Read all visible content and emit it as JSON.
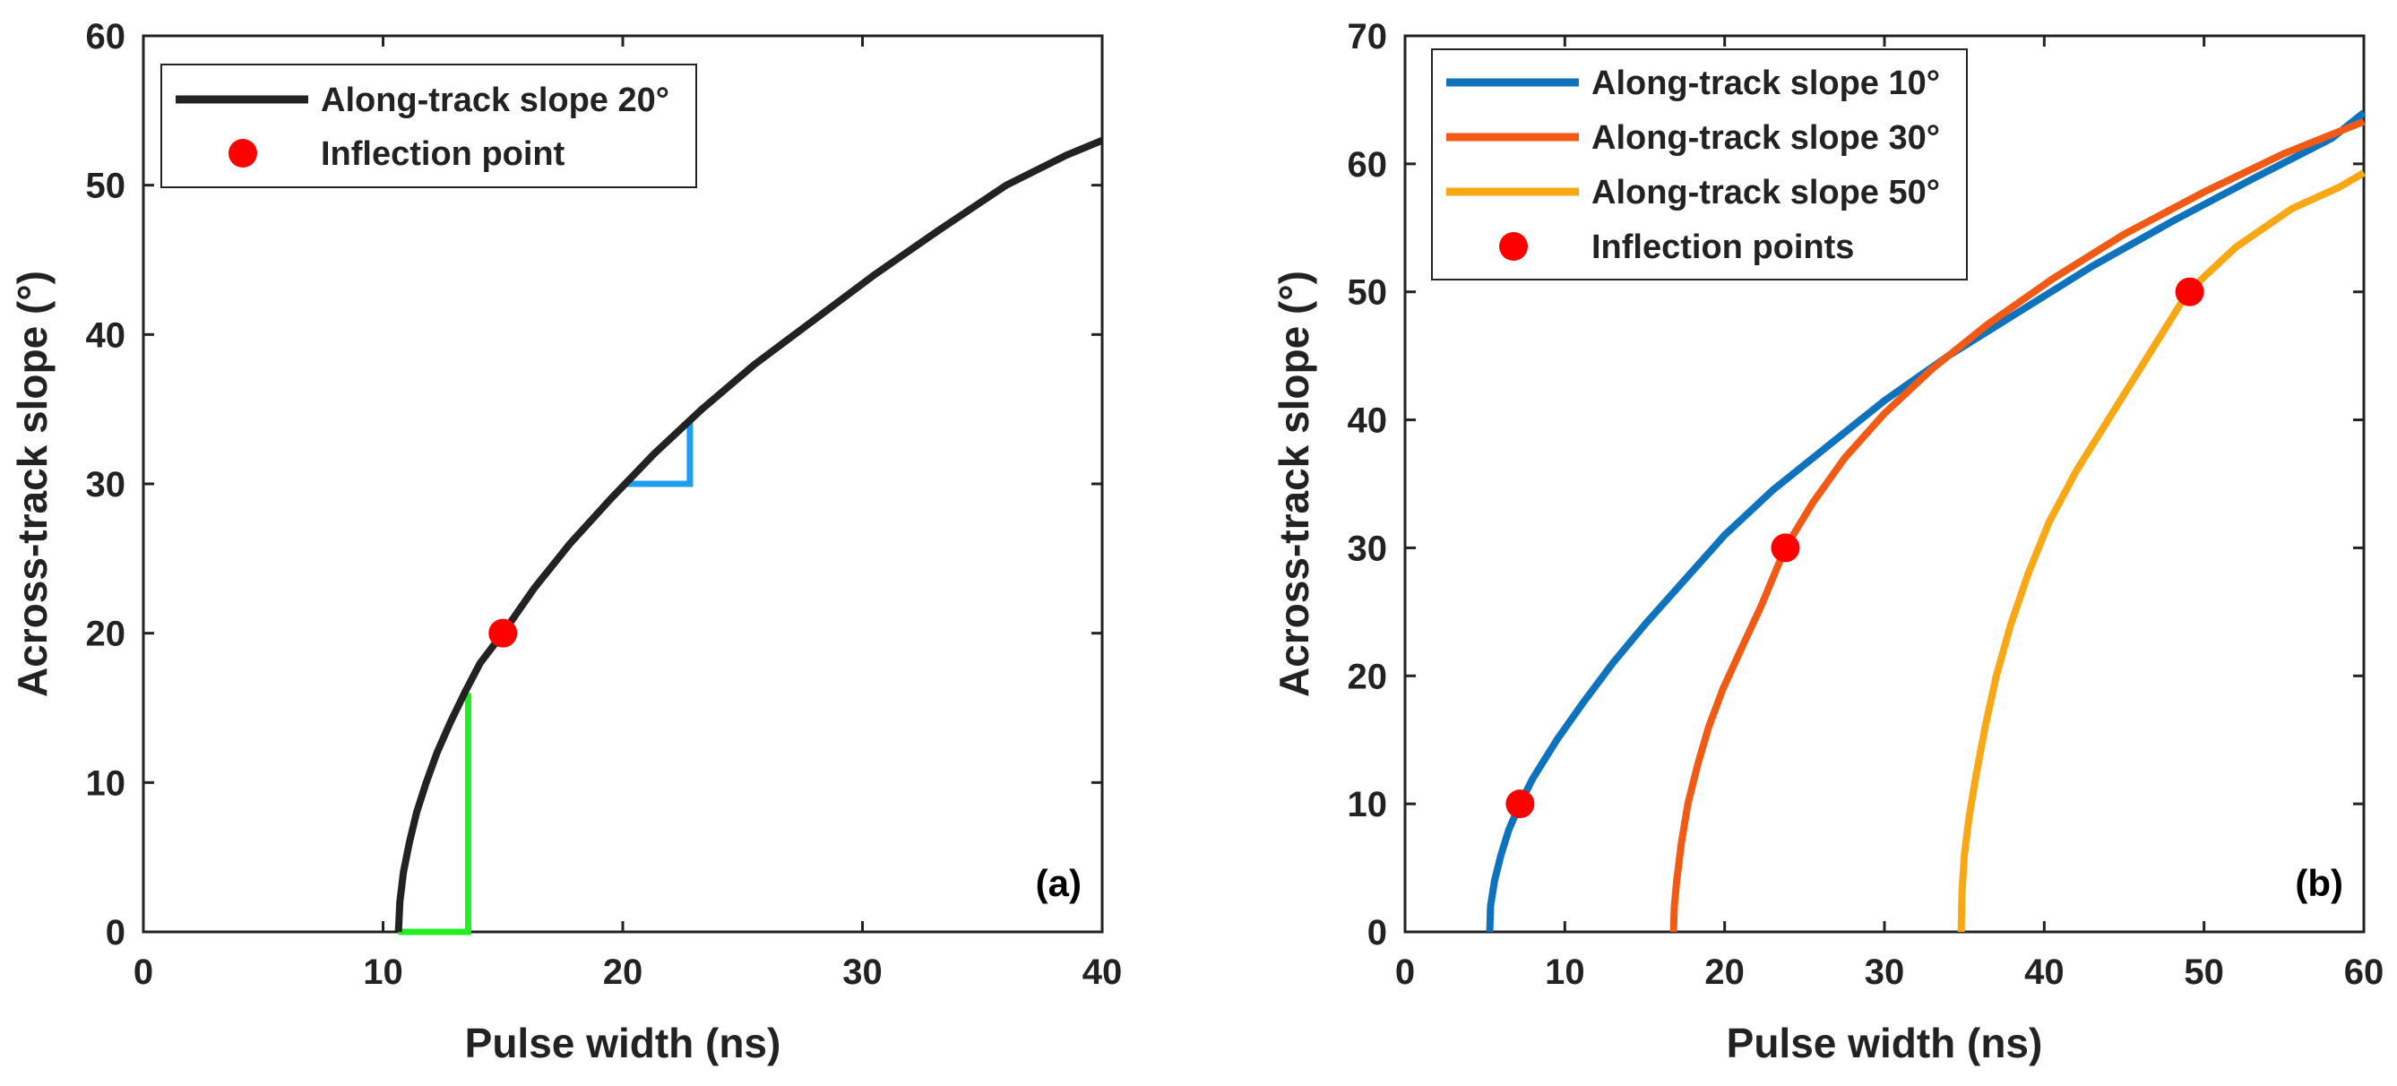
{
  "chart_data": [
    {
      "id": "a",
      "type": "line",
      "panel_label": "(a)",
      "xlabel": "Pulse width (ns)",
      "ylabel": "Across-track slope (°)",
      "xlim": [
        0,
        40
      ],
      "ylim": [
        0,
        60
      ],
      "xticks": [
        "0",
        "10",
        "20",
        "30",
        "40"
      ],
      "yticks": [
        "0",
        "10",
        "20",
        "30",
        "40",
        "50",
        "60"
      ],
      "legend_position": "top-left",
      "series": [
        {
          "name": "Along-track slope 20°",
          "color": "#222222",
          "x": [
            10.64,
            10.7,
            10.85,
            11.1,
            11.4,
            11.8,
            12.25,
            12.8,
            13.4,
            14.05,
            15.0,
            16.3,
            17.8,
            19.5,
            21.3,
            23.3,
            25.5,
            28.0,
            30.5,
            33.2,
            36.0,
            38.5,
            40.0
          ],
          "y": [
            0,
            2,
            4,
            6,
            8,
            10,
            12,
            14,
            16,
            18,
            20,
            23,
            26,
            29,
            32,
            35,
            38,
            41,
            44,
            47,
            50,
            52,
            53
          ]
        }
      ],
      "inflection_points": {
        "name": "Inflection point",
        "color": "#ff0000",
        "x": [
          15.0
        ],
        "y": [
          20
        ]
      },
      "annotations": [
        {
          "name": "green-step",
          "color": "#22ee22",
          "x": [
            10.64,
            13.55,
            13.55
          ],
          "y": [
            0,
            0,
            16
          ]
        },
        {
          "name": "blue-step",
          "color": "#1e9ef0",
          "x": [
            20.0,
            22.8,
            22.8
          ],
          "y": [
            30,
            30,
            34.3
          ]
        }
      ]
    },
    {
      "id": "b",
      "type": "line",
      "panel_label": "(b)",
      "xlabel": "Pulse width (ns)",
      "ylabel": "Across-track slope (°)",
      "xlim": [
        0,
        60
      ],
      "ylim": [
        0,
        70
      ],
      "xticks": [
        "0",
        "10",
        "20",
        "30",
        "40",
        "50",
        "60"
      ],
      "yticks": [
        "0",
        "10",
        "20",
        "30",
        "40",
        "50",
        "60",
        "70"
      ],
      "legend_position": "top-left",
      "series": [
        {
          "name": "Along-track slope 10°",
          "color": "#0e72bd",
          "x": [
            5.3,
            5.35,
            5.6,
            6.0,
            6.5,
            7.2,
            8.0,
            9.5,
            11.2,
            13.0,
            15.0,
            17.5,
            20.0,
            23.0,
            26.5,
            30.0,
            34.0,
            38.5,
            43.0,
            48.0,
            53.0,
            58.0,
            60.0
          ],
          "y": [
            0,
            2,
            4,
            6,
            8,
            10,
            12,
            15,
            18,
            21,
            24,
            27.5,
            31,
            34.5,
            38,
            41.5,
            45,
            48.5,
            52,
            55.5,
            58.8,
            62,
            64
          ]
        },
        {
          "name": "Along-track slope 30°",
          "color": "#f05a14",
          "x": [
            16.8,
            16.85,
            17.0,
            17.3,
            17.7,
            18.3,
            19.0,
            19.9,
            21.0,
            22.3,
            23.8,
            25.5,
            27.5,
            30.0,
            33.0,
            36.5,
            40.5,
            45.0,
            50.0,
            55.0,
            60.0
          ],
          "y": [
            0,
            2,
            4,
            7,
            10,
            13,
            16,
            19,
            22,
            25.5,
            30,
            33.5,
            37,
            40.5,
            44,
            47.5,
            51,
            54.5,
            57.8,
            60.8,
            63.3
          ]
        },
        {
          "name": "Along-track slope 50°",
          "color": "#f8a814",
          "x": [
            34.8,
            34.85,
            35.0,
            35.3,
            35.7,
            36.3,
            37.0,
            37.9,
            39.0,
            40.3,
            42.0,
            44.0,
            46.5,
            49.0,
            52.0,
            55.5,
            58.5,
            60.0
          ],
          "y": [
            0,
            3,
            6,
            9,
            12,
            16,
            20,
            24,
            28,
            32,
            36,
            40,
            45,
            50,
            53.5,
            56.5,
            58.2,
            59.3
          ]
        }
      ],
      "inflection_points": {
        "name": "Inflection points",
        "color": "#ff0000",
        "x": [
          7.2,
          23.8,
          49.1
        ],
        "y": [
          10,
          30,
          50
        ]
      }
    }
  ]
}
